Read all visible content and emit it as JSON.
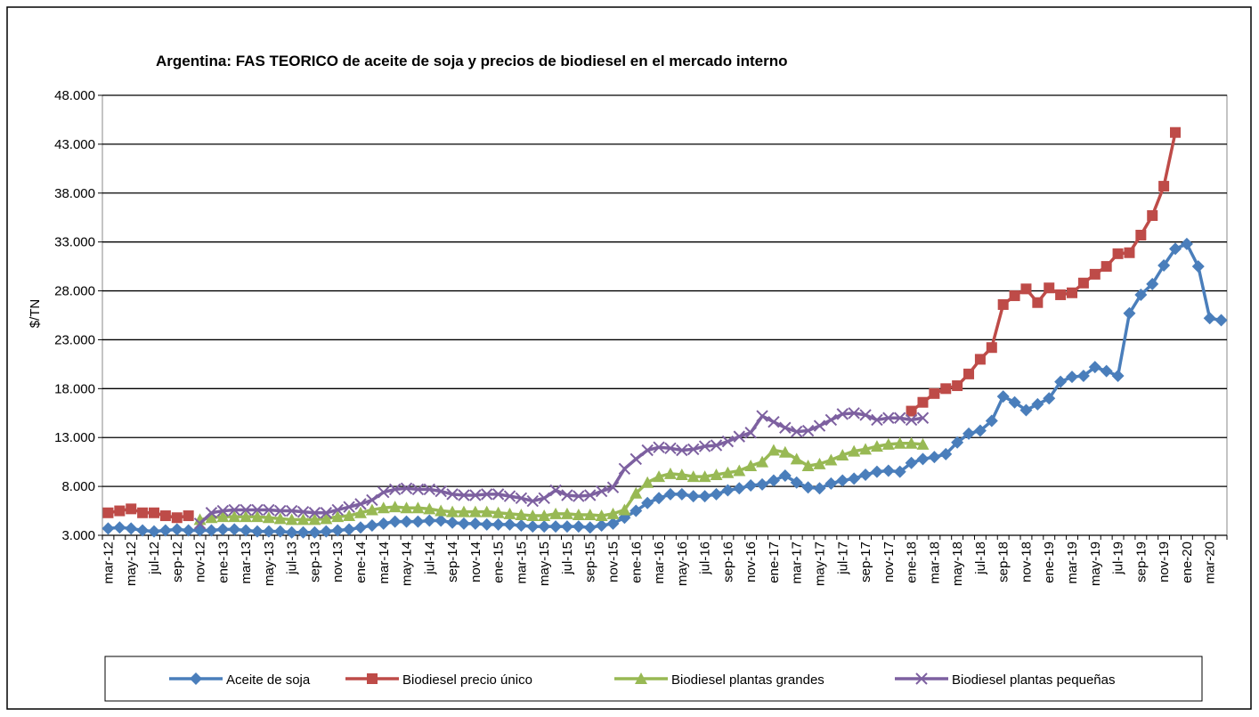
{
  "chart_data": {
    "type": "line",
    "title": "Argentina: FAS  TEORICO  de aceite de soja y precios de biodiesel  en el mercado interno",
    "y_label": "$/TN",
    "categories": [
      "mar-12",
      null,
      "may-12",
      null,
      "jul-12",
      null,
      "sep-12",
      null,
      "nov-12",
      null,
      "ene-13",
      null,
      "mar-13",
      null,
      "may-13",
      null,
      "jul-13",
      null,
      "sep-13",
      null,
      "nov-13",
      null,
      "ene-14",
      null,
      "mar-14",
      null,
      "may-14",
      null,
      "jul-14",
      null,
      "sep-14",
      null,
      "nov-14",
      null,
      "ene-15",
      null,
      "mar-15",
      null,
      "may-15",
      null,
      "jul-15",
      null,
      "sep-15",
      null,
      "nov-15",
      null,
      "ene-16",
      null,
      "mar-16",
      null,
      "may-16",
      null,
      "jul-16",
      null,
      "sep-16",
      null,
      "nov-16",
      null,
      "ene-17",
      null,
      "mar-17",
      null,
      "may-17",
      null,
      "jul-17",
      null,
      "sep-17",
      null,
      "nov-17",
      null,
      "ene-18",
      null,
      "mar-18",
      null,
      "may-18",
      null,
      "jul-18",
      null,
      "sep-18",
      null,
      "nov-18",
      null,
      "ene-19",
      null,
      "mar-19",
      null,
      "may-19",
      null,
      "jul-19",
      null,
      "sep-19",
      null,
      "nov-19",
      null,
      "ene-20",
      null,
      "mar-20",
      null
    ],
    "series": [
      {
        "name": "Aceite de soja",
        "color": "#4a7ebb",
        "marker": "diamond",
        "values": [
          3700,
          3800,
          3700,
          3500,
          3400,
          3500,
          3600,
          3500,
          3500,
          3500,
          3600,
          3600,
          3500,
          3400,
          3400,
          3400,
          3300,
          3300,
          3300,
          3400,
          3500,
          3600,
          3800,
          4000,
          4200,
          4400,
          4400,
          4400,
          4500,
          4500,
          4300,
          4200,
          4200,
          4100,
          4100,
          4100,
          4000,
          3900,
          3900,
          3900,
          3900,
          3900,
          3800,
          4000,
          4200,
          4800,
          5500,
          6300,
          6800,
          7200,
          7200,
          7000,
          7000,
          7200,
          7600,
          7800,
          8100,
          8200,
          8600,
          9100,
          8400,
          7900,
          7800,
          8300,
          8600,
          8800,
          9200,
          9500,
          9600,
          9500,
          10400,
          10800,
          11000,
          11300,
          12500,
          13400,
          13700,
          14700,
          17200,
          16600,
          15800,
          16400,
          17000,
          18700,
          19200,
          19300,
          20200,
          19800,
          19300,
          25700,
          27600,
          28700,
          30600,
          32300,
          32800,
          30500,
          25200,
          25000
        ]
      },
      {
        "name": "Biodiesel precio único",
        "color": "#be4b48",
        "marker": "square",
        "values": [
          5300,
          5500,
          5700,
          5300,
          5300,
          5000,
          4800,
          5000,
          null,
          null,
          null,
          null,
          null,
          null,
          null,
          null,
          null,
          null,
          null,
          null,
          null,
          null,
          null,
          null,
          null,
          null,
          null,
          null,
          null,
          null,
          null,
          null,
          null,
          null,
          null,
          null,
          null,
          null,
          null,
          null,
          null,
          null,
          null,
          null,
          null,
          null,
          null,
          null,
          null,
          null,
          null,
          null,
          null,
          null,
          null,
          null,
          null,
          null,
          null,
          null,
          null,
          null,
          null,
          null,
          null,
          null,
          null,
          null,
          null,
          null,
          15700,
          16600,
          17500,
          18000,
          18300,
          19500,
          21000,
          22200,
          26600,
          27500,
          28200,
          26800,
          28300,
          27600,
          27800,
          28800,
          29700,
          30500,
          31800,
          31900,
          33700,
          35700,
          38700,
          44200,
          null,
          null,
          null,
          null
        ]
      },
      {
        "name": "Biodiesel plantas grandes",
        "color": "#98b954",
        "marker": "triangle",
        "values": [
          null,
          null,
          null,
          null,
          null,
          null,
          null,
          null,
          4600,
          4800,
          4900,
          4900,
          4900,
          4900,
          4800,
          4700,
          4600,
          4600,
          4600,
          4700,
          4900,
          5000,
          5300,
          5600,
          5800,
          5900,
          5800,
          5800,
          5700,
          5500,
          5400,
          5400,
          5400,
          5400,
          5300,
          5200,
          5100,
          5000,
          5000,
          5200,
          5200,
          5100,
          5100,
          5000,
          5200,
          5600,
          7300,
          8400,
          9000,
          9300,
          9200,
          9000,
          9000,
          9200,
          9400,
          9600,
          10100,
          10500,
          11700,
          11500,
          10800,
          10100,
          10300,
          10700,
          11200,
          11600,
          11800,
          12100,
          12300,
          12400,
          12400,
          12300,
          null,
          null,
          null,
          null,
          null,
          null,
          null,
          null,
          null,
          null,
          null,
          null,
          null,
          null,
          null,
          null,
          null,
          null,
          null,
          null,
          null,
          null,
          null,
          null,
          null,
          null
        ]
      },
      {
        "name": "Biodiesel plantas pequeñas",
        "color": "#7d60a0",
        "marker": "x",
        "values": [
          null,
          null,
          null,
          null,
          null,
          null,
          null,
          null,
          4200,
          5300,
          5500,
          5600,
          5600,
          5600,
          5600,
          5500,
          5500,
          5400,
          5300,
          5300,
          5600,
          5900,
          6200,
          6600,
          7400,
          7700,
          7800,
          7700,
          7700,
          7500,
          7200,
          7100,
          7100,
          7200,
          7200,
          7000,
          6800,
          6500,
          6800,
          7600,
          7100,
          7000,
          7100,
          7500,
          7900,
          9800,
          10800,
          11700,
          12000,
          11900,
          11700,
          11800,
          12100,
          12200,
          12600,
          13100,
          13500,
          15200,
          14600,
          14000,
          13600,
          13700,
          14200,
          14800,
          15400,
          15500,
          15300,
          14800,
          15000,
          15000,
          14800,
          15000,
          null,
          null,
          null,
          null,
          null,
          null,
          null,
          null,
          null,
          null,
          null,
          null,
          null,
          null,
          null,
          null,
          null,
          null,
          null,
          null,
          null,
          null,
          null,
          null,
          null,
          null
        ]
      }
    ],
    "ylim": [
      3000,
      48000
    ],
    "yticks": [
      {
        "value": 3000,
        "label": "3.000"
      },
      {
        "value": 8000,
        "label": "8.000"
      },
      {
        "value": 13000,
        "label": "13.000"
      },
      {
        "value": 18000,
        "label": "18.000"
      },
      {
        "value": 23000,
        "label": "23.000"
      },
      {
        "value": 28000,
        "label": "28.000"
      },
      {
        "value": 33000,
        "label": "33.000"
      },
      {
        "value": 38000,
        "label": "38.000"
      },
      {
        "value": 43000,
        "label": "43.000"
      },
      {
        "value": 48000,
        "label": "48.000"
      }
    ],
    "grid": true,
    "legend": "bottom"
  }
}
